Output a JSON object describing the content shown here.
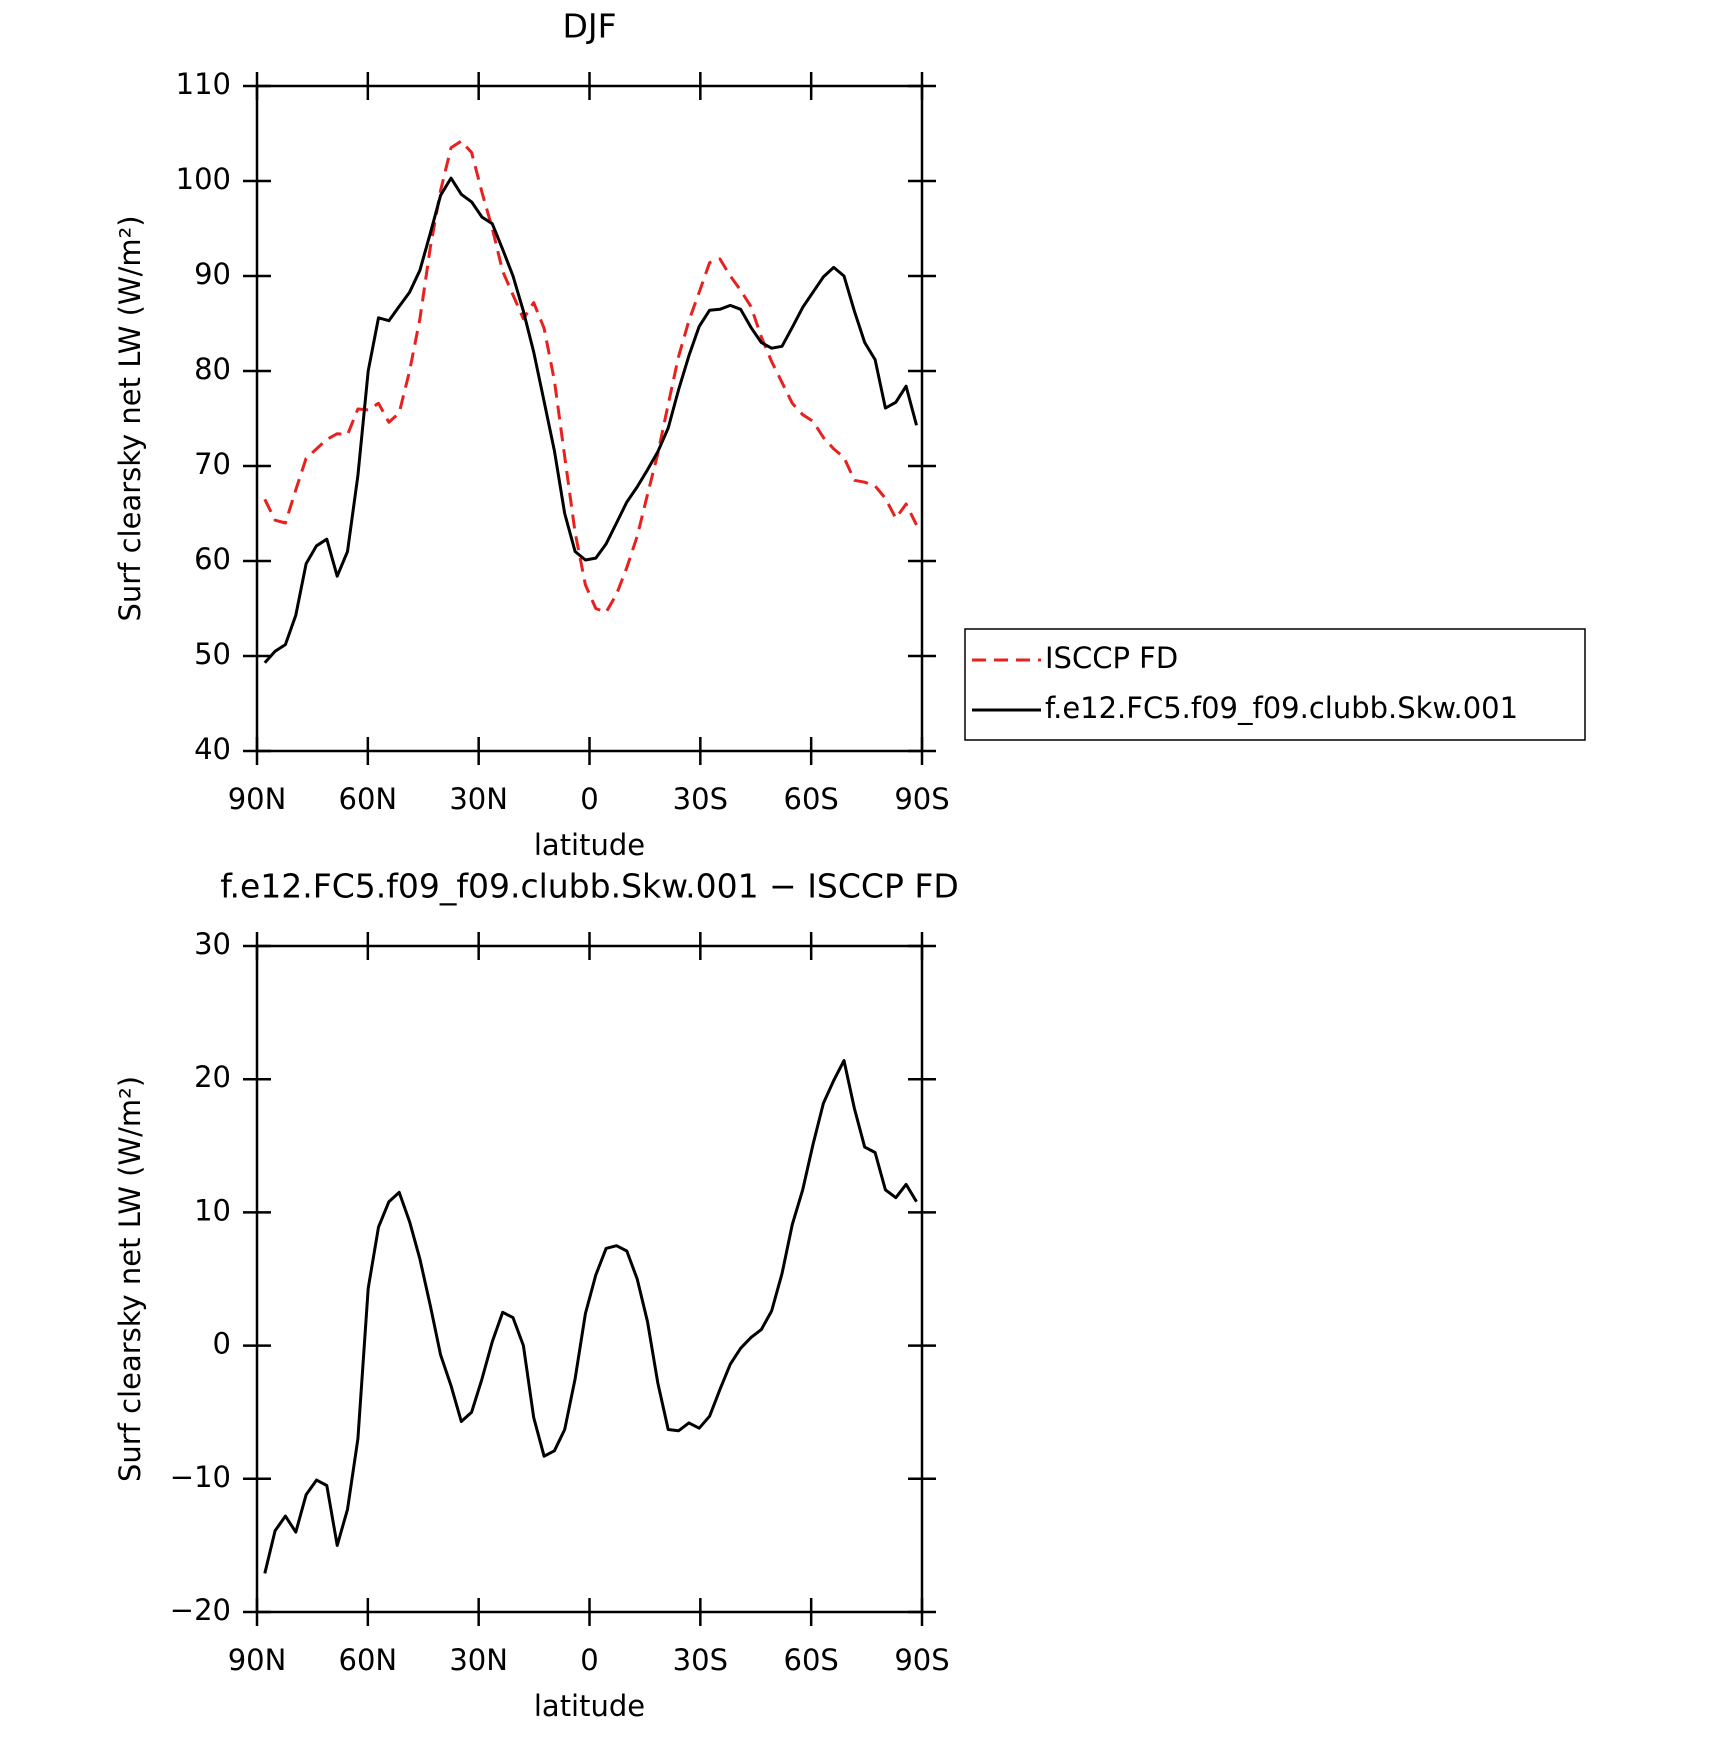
{
  "chart_data": [
    {
      "type": "line",
      "title": "DJF",
      "xlabel": "latitude",
      "ylabel": "Surf clearsky net LW (W/m²)",
      "xlim": [
        90,
        -90
      ],
      "ylim": [
        40,
        110
      ],
      "xticks": [
        {
          "value": 90,
          "label": "90N"
        },
        {
          "value": 60,
          "label": "60N"
        },
        {
          "value": 30,
          "label": "30N"
        },
        0,
        {
          "value": -30,
          "label": "30S"
        },
        {
          "value": -60,
          "label": "60S"
        },
        {
          "value": -90,
          "label": "90S"
        }
      ],
      "yticks": [
        40,
        50,
        60,
        70,
        80,
        90,
        100,
        110
      ],
      "legend": "outside-right",
      "x": [
        87.9,
        85.1,
        82.3,
        79.5,
        76.7,
        73.9,
        71.1,
        68.3,
        65.5,
        62.7,
        59.9,
        57.1,
        54.3,
        51.5,
        48.7,
        45.9,
        43.1,
        40.3,
        37.5,
        34.7,
        31.9,
        29.1,
        26.3,
        23.5,
        20.7,
        17.9,
        15.1,
        12.3,
        9.5,
        6.7,
        3.9,
        1.1,
        -1.7,
        -4.5,
        -7.3,
        -10.1,
        -12.9,
        -15.7,
        -18.5,
        -21.3,
        -24.1,
        -26.9,
        -29.7,
        -32.5,
        -35.3,
        -38.1,
        -40.9,
        -43.7,
        -46.5,
        -49.3,
        -52.1,
        -54.9,
        -57.7,
        -60.5,
        -63.3,
        -66.1,
        -68.9,
        -71.7,
        -74.5,
        -77.3,
        -80.1,
        -82.9,
        -85.7,
        -88.5
      ],
      "series": [
        {
          "name": "ISCCP FD",
          "color": "#e8201e",
          "dash": "dashed",
          "values": [
            66.5,
            64.3,
            64,
            67.5,
            70.8,
            71.8,
            72.8,
            73.4,
            73.3,
            76,
            75.9,
            76.6,
            74.6,
            75.6,
            80,
            85.5,
            93,
            99,
            103.5,
            104.2,
            103,
            98.8,
            95,
            90.5,
            88,
            85.5,
            87.2,
            84.5,
            79,
            71,
            63,
            57.5,
            55,
            54.6,
            56.5,
            59.3,
            62.6,
            67,
            71.3,
            76.5,
            81.5,
            85.3,
            88.3,
            91.4,
            91.8,
            90,
            88.5,
            86.8,
            83.6,
            81,
            78.8,
            76.6,
            75.4,
            74.7,
            73,
            71.8,
            70.9,
            68.5,
            68.3,
            67.9,
            66.6,
            64.5,
            66,
            63.8
          ]
        },
        {
          "name": "f.e12.FC5.f09_f09.clubb.Skw.001",
          "color": "#000000",
          "dash": "solid",
          "values": [
            49.3,
            50.5,
            51.2,
            54.3,
            59.7,
            61.6,
            62.3,
            58.4,
            61,
            69,
            80,
            85.6,
            85.3,
            86.8,
            88.3,
            90.6,
            94.5,
            98.5,
            100.3,
            98.6,
            97.8,
            96.2,
            95.5,
            92.8,
            90,
            86.3,
            82,
            76.8,
            71.6,
            65,
            61,
            60.1,
            60.3,
            61.8,
            64,
            66.2,
            67.8,
            69.6,
            71.5,
            74,
            78,
            81.6,
            84.7,
            86.4,
            86.5,
            86.9,
            86.5,
            84.6,
            83,
            82.4,
            82.6,
            84.6,
            86.7,
            88.3,
            89.9,
            90.9,
            90,
            86.3,
            83,
            81.2,
            76.1,
            76.7,
            78.4,
            74.3
          ]
        }
      ]
    },
    {
      "type": "line",
      "title": "f.e12.FC5.f09_f09.clubb.Skw.001 − ISCCP FD",
      "xlabel": "latitude",
      "ylabel": "Surf clearsky net LW (W/m²)",
      "xlim": [
        90,
        -90
      ],
      "ylim": [
        -20,
        30
      ],
      "xticks": [
        {
          "value": 90,
          "label": "90N"
        },
        {
          "value": 60,
          "label": "60N"
        },
        {
          "value": 30,
          "label": "30N"
        },
        0,
        {
          "value": -30,
          "label": "30S"
        },
        {
          "value": -60,
          "label": "60S"
        },
        {
          "value": -90,
          "label": "90S"
        }
      ],
      "yticks": [
        {
          "value": -20,
          "label": "−20"
        },
        {
          "value": -10,
          "label": "−10"
        },
        0,
        10,
        20,
        30
      ],
      "x": [
        87.9,
        85.1,
        82.3,
        79.5,
        76.7,
        73.9,
        71.1,
        68.3,
        65.5,
        62.7,
        59.9,
        57.1,
        54.3,
        51.5,
        48.7,
        45.9,
        43.1,
        40.3,
        37.5,
        34.7,
        31.9,
        29.1,
        26.3,
        23.5,
        20.7,
        17.9,
        15.1,
        12.3,
        9.5,
        6.7,
        3.9,
        1.1,
        -1.7,
        -4.5,
        -7.3,
        -10.1,
        -12.9,
        -15.7,
        -18.5,
        -21.3,
        -24.1,
        -26.9,
        -29.7,
        -32.5,
        -35.3,
        -38.1,
        -40.9,
        -43.7,
        -46.5,
        -49.3,
        -52.1,
        -54.9,
        -57.7,
        -60.5,
        -63.3,
        -66.1,
        -68.9,
        -71.7,
        -74.5,
        -77.3,
        -80.1,
        -82.9,
        -85.7,
        -88.5
      ],
      "series": [
        {
          "color": "#000000",
          "dash": "solid",
          "values": [
            -17.1,
            -13.9,
            -12.8,
            -14,
            -11.2,
            -10.1,
            -10.5,
            -15,
            -12.3,
            -7,
            4.3,
            8.9,
            10.8,
            11.5,
            9.3,
            6.5,
            3,
            -0.7,
            -3,
            -5.7,
            -5,
            -2.5,
            0.3,
            2.5,
            2.1,
            0,
            -5.4,
            -8.3,
            -7.9,
            -6.3,
            -2.5,
            2.4,
            5.3,
            7.3,
            7.5,
            7.1,
            5,
            1.8,
            -2.8,
            -6.3,
            -6.4,
            -5.8,
            -6.2,
            -5.3,
            -3.3,
            -1.4,
            -0.2,
            0.6,
            1.2,
            2.6,
            5.4,
            9.1,
            11.7,
            15.1,
            18.2,
            19.9,
            21.4,
            17.8,
            14.9,
            14.5,
            11.7,
            11.1,
            12.1,
            10.8
          ]
        }
      ]
    }
  ]
}
